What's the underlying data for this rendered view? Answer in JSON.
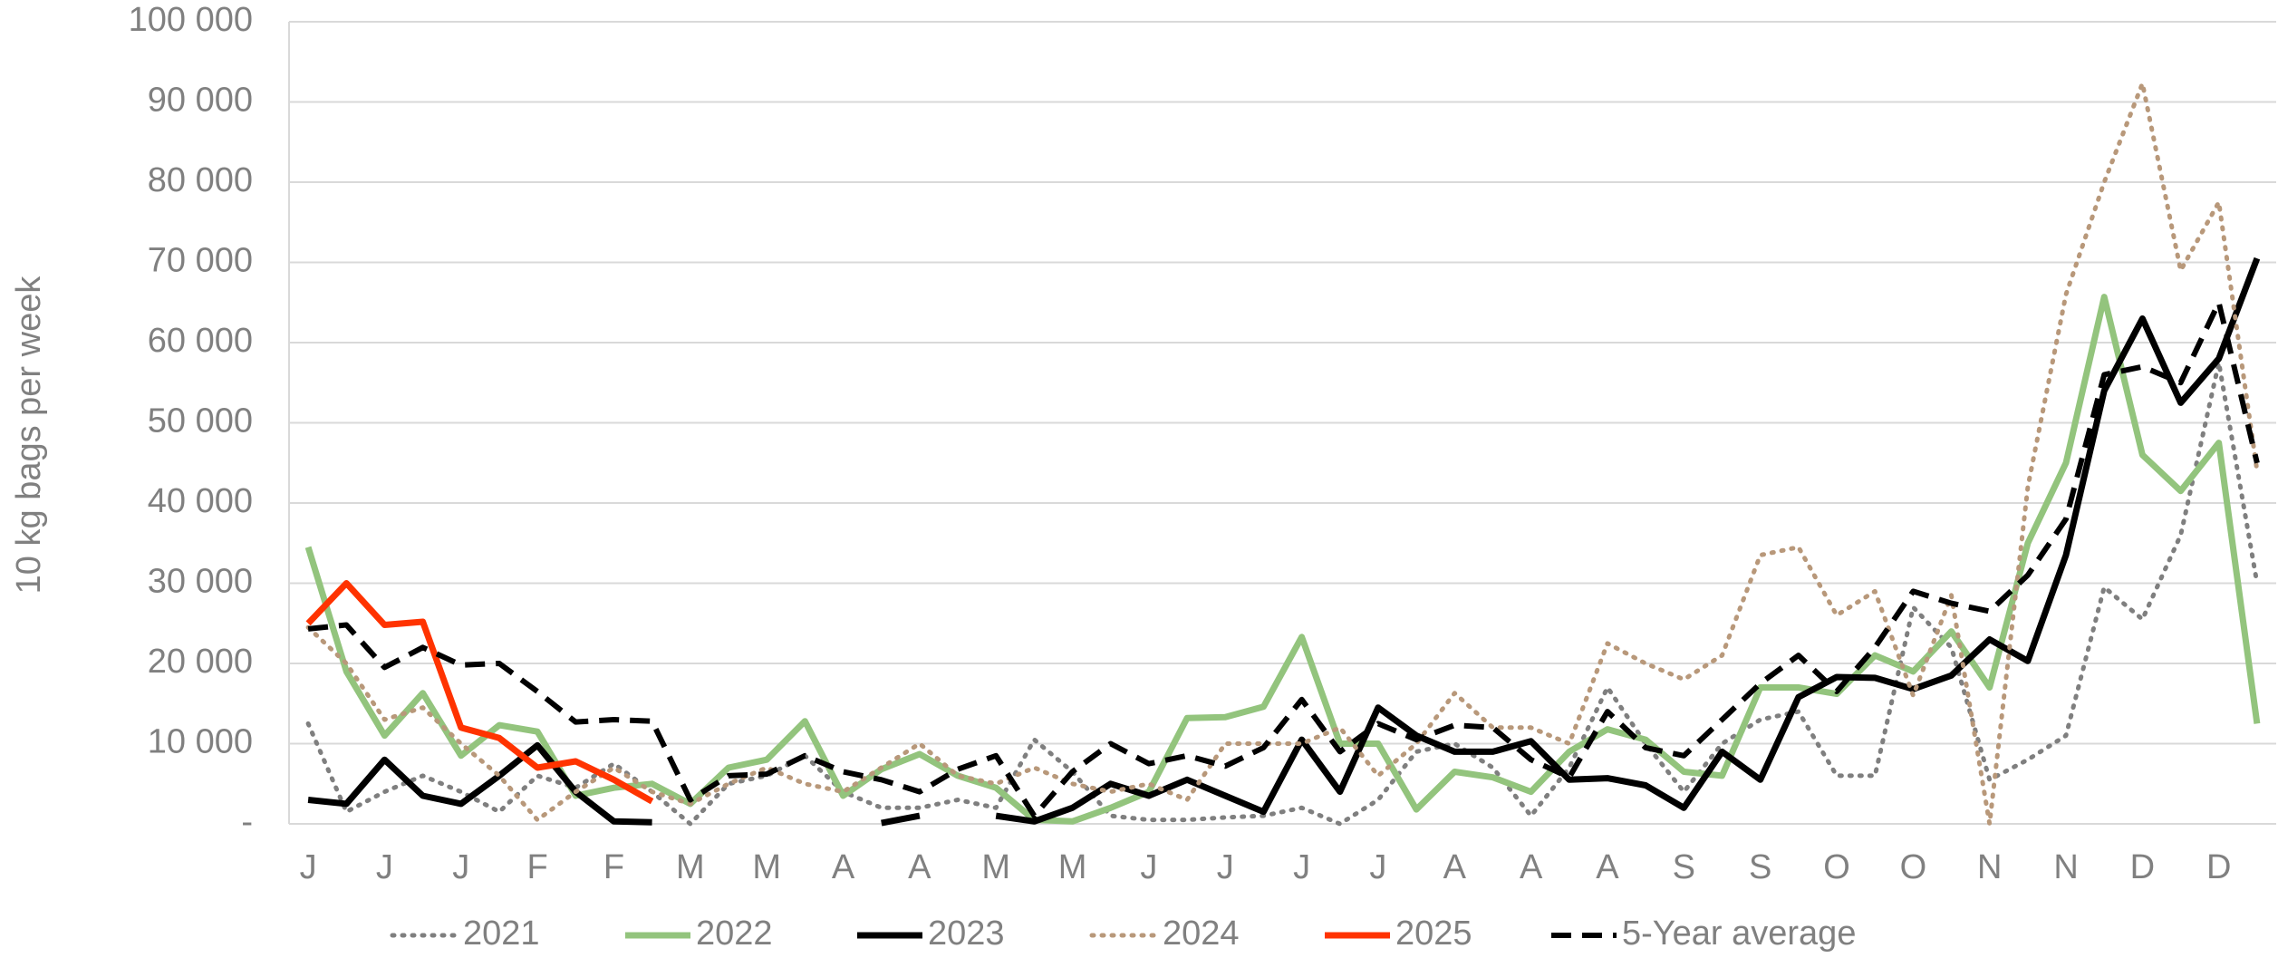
{
  "chart_data": {
    "type": "line",
    "y_label": "10 kg bags per week",
    "categories": [
      "J",
      null,
      "J",
      null,
      "J",
      null,
      "F",
      null,
      "F",
      null,
      "M",
      null,
      "M",
      null,
      "A",
      null,
      "A",
      null,
      "M",
      null,
      "M",
      null,
      "J",
      null,
      "J",
      null,
      "J",
      null,
      "J",
      null,
      "A",
      null,
      "A",
      null,
      "A",
      null,
      "S",
      null,
      "S",
      null,
      "O",
      null,
      "O",
      null,
      "N",
      null,
      "N",
      null,
      "D",
      null,
      "D",
      null
    ],
    "ylim": [
      0,
      100000
    ],
    "yticks": [
      {
        "value": 0,
        "label": "-"
      },
      {
        "value": 10000,
        "label": "10 000"
      },
      {
        "value": 20000,
        "label": "20 000"
      },
      {
        "value": 30000,
        "label": "30 000"
      },
      {
        "value": 40000,
        "label": "40 000"
      },
      {
        "value": 50000,
        "label": "50 000"
      },
      {
        "value": 60000,
        "label": "60 000"
      },
      {
        "value": 70000,
        "label": "70 000"
      },
      {
        "value": 80000,
        "label": "80 000"
      },
      {
        "value": 90000,
        "label": "90 000"
      },
      {
        "value": 100000,
        "label": "100 000"
      }
    ],
    "grid": true,
    "legend": "bottom",
    "series": [
      {
        "name": "2021",
        "color": "#7f7f7f",
        "style": "dotted",
        "values": [
          12500,
          1500,
          4000,
          6000,
          4000,
          1500,
          6000,
          4500,
          7500,
          4000,
          0,
          5000,
          6000,
          8500,
          4000,
          2000,
          2000,
          3000,
          2000,
          10500,
          6500,
          1000,
          500,
          500,
          800,
          1000,
          2000,
          0,
          3000,
          9000,
          10000,
          7000,
          1000,
          7000,
          17000,
          10000,
          4000,
          10000,
          13000,
          14000,
          6000,
          6000,
          27000,
          22000,
          5500,
          8000,
          11000,
          29500,
          25500,
          36000,
          57500,
          30000
        ]
      },
      {
        "name": "2022",
        "color": "#93c47d",
        "style": "solid",
        "values": [
          34500,
          19000,
          11000,
          16300,
          8500,
          12300,
          11500,
          3500,
          4500,
          5000,
          2500,
          7000,
          8000,
          12800,
          3500,
          6800,
          8700,
          6000,
          4500,
          500,
          300,
          2000,
          4000,
          13200,
          13300,
          14600,
          23300,
          10000,
          10000,
          1800,
          6500,
          5800,
          4000,
          9000,
          11800,
          10500,
          6500,
          6000,
          17000,
          17000,
          16200,
          21000,
          19000,
          24000,
          17000,
          35000,
          45000,
          65700,
          46000,
          41500,
          47500,
          12500
        ]
      },
      {
        "name": "2023",
        "color": "#000000",
        "style": "solid",
        "values": [
          3000,
          2500,
          8000,
          3500,
          2500,
          6000,
          9800,
          4000,
          300,
          200,
          null,
          null,
          null,
          null,
          null,
          100,
          1000,
          null,
          1000,
          300,
          2000,
          5000,
          3500,
          5500,
          3500,
          1500,
          10500,
          4000,
          14500,
          11000,
          9000,
          9000,
          10300,
          5500,
          5700,
          4800,
          2000,
          9000,
          5500,
          15800,
          18300,
          18200,
          16800,
          18500,
          23000,
          20300,
          33500,
          54000,
          63000,
          52500,
          58000,
          70500
        ]
      },
      {
        "name": "2024",
        "color": "#b8987a",
        "style": "dotted",
        "values": [
          24500,
          20000,
          13000,
          14500,
          10000,
          6000,
          500,
          4000,
          7000,
          4000,
          2500,
          5000,
          7000,
          5000,
          4000,
          7000,
          10000,
          6000,
          5000,
          7000,
          5000,
          4000,
          5000,
          3000,
          10000,
          10000,
          10000,
          12000,
          6000,
          10000,
          16300,
          12000,
          12000,
          10000,
          22500,
          20000,
          18000,
          21000,
          33500,
          34500,
          26000,
          29000,
          16000,
          28500,
          0,
          42000,
          66000,
          80000,
          92300,
          69000,
          77500,
          44000
        ]
      },
      {
        "name": "2025",
        "color": "#ff3300",
        "style": "solid",
        "values": [
          25000,
          30000,
          24800,
          25200,
          12000,
          10700,
          7000,
          7800,
          5500,
          2800,
          null,
          null,
          null,
          null,
          null,
          null,
          null,
          null,
          null,
          null,
          null,
          null,
          null,
          null,
          null,
          null,
          null,
          null,
          null,
          null,
          null,
          null,
          null,
          null,
          null,
          null,
          null,
          null,
          null,
          null,
          null,
          null,
          null,
          null,
          null,
          null,
          null,
          null,
          null,
          null,
          null,
          null
        ]
      },
      {
        "name": "5-Year average",
        "color": "#000000",
        "style": "dashed",
        "values": [
          24300,
          24800,
          19500,
          22000,
          19800,
          20000,
          16500,
          12700,
          13000,
          12800,
          3000,
          6000,
          6200,
          8500,
          6500,
          5500,
          4000,
          6800,
          8500,
          1000,
          6500,
          10000,
          7500,
          8500,
          7200,
          9500,
          15500,
          9000,
          12500,
          10500,
          12300,
          12000,
          8000,
          5800,
          14000,
          9500,
          8500,
          13000,
          17500,
          21000,
          16500,
          22000,
          29000,
          27500,
          26500,
          31000,
          38000,
          56000,
          57000,
          55000,
          65000,
          45000
        ]
      }
    ]
  }
}
